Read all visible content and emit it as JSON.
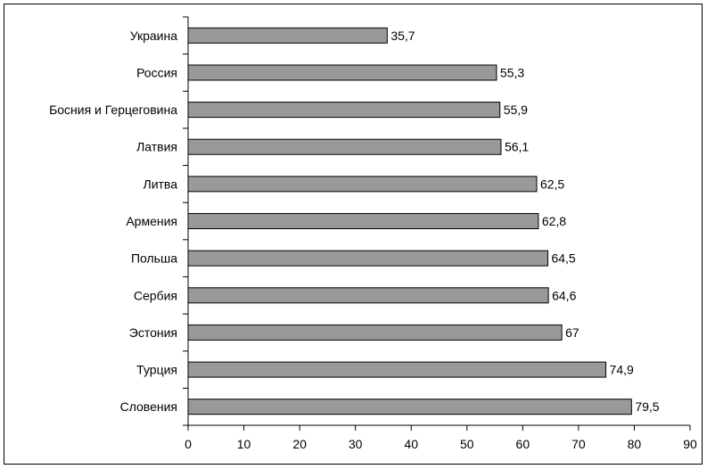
{
  "chart_data": {
    "type": "bar",
    "orientation": "horizontal",
    "categories": [
      "Украина",
      "Россия",
      "Босния и Герцеговина",
      "Латвия",
      "Литва",
      "Армения",
      "Польша",
      "Сербия",
      "Эстония",
      "Турция",
      "Словения"
    ],
    "values": [
      35.7,
      55.3,
      55.9,
      56.1,
      62.5,
      62.8,
      64.5,
      64.6,
      67,
      74.9,
      79.5
    ],
    "value_labels": [
      "35,7",
      "55,3",
      "55,9",
      "56,1",
      "62,5",
      "62,8",
      "64,5",
      "64,6",
      "67",
      "74,9",
      "79,5"
    ],
    "xlim": [
      0,
      90
    ],
    "x_ticks": [
      0,
      10,
      20,
      30,
      40,
      50,
      60,
      70,
      80,
      90
    ],
    "grid": false,
    "legend": "none",
    "title": "",
    "xlabel": "",
    "ylabel": "",
    "colors": {
      "bar_fill": "#999999",
      "bar_stroke": "#000000",
      "axis": "#000000",
      "text": "#000000"
    }
  }
}
